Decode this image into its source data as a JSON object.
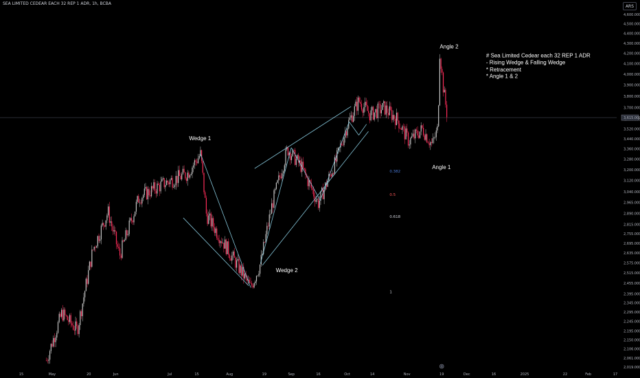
{
  "header": {
    "symbol_title": "SEA LIMITED CEDEAR EACH 32 REP 1 ADR, 1h, BCBA",
    "currency": "ARS"
  },
  "colors": {
    "background": "#000000",
    "candle_up": "#c6c6c6",
    "candle_down": "#ff2d5a",
    "trendline": "#86c7db",
    "price_line": "#363a45",
    "fib_0382": "#4a7ad8",
    "fib_05": "#ff5a5a",
    "fib_0618": "#d1d4dc",
    "fib_1": "#d1d4dc"
  },
  "chart_data": {
    "type": "candlestick",
    "title": "SEA LIMITED CEDEAR EACH 32 REP 1 ADR, 1h, BCBA",
    "xlabel": "",
    "ylabel": "",
    "y_scale": "log",
    "ylim": [
      2015,
      4700
    ],
    "y_ticks": [
      "4,600.000",
      "4,500.000",
      "4,400.000",
      "4,300.000",
      "4,200.000",
      "4,100.000",
      "4,000.000",
      "3,900.000",
      "3,800.000",
      "3,700.000",
      "3,600.000",
      "3,520.000",
      "3,440.000",
      "3,360.000",
      "3,280.000",
      "3,200.000",
      "3,120.000",
      "3,040.000",
      "2,965.000",
      "2,890.000",
      "2,815.000",
      "2,755.000",
      "2,695.000",
      "2,635.000",
      "2,575.000",
      "2,515.000",
      "2,455.000",
      "2,395.000",
      "2,345.000",
      "2,295.000",
      "2,245.000",
      "2,195.000",
      "2,150.000",
      "2,106.000",
      "2,061.000",
      "2,019.000"
    ],
    "y_tick_values": [
      4600,
      4500,
      4400,
      4300,
      4200,
      4100,
      4000,
      3900,
      3800,
      3700,
      3600,
      3520,
      3440,
      3360,
      3280,
      3200,
      3120,
      3040,
      2965,
      2890,
      2815,
      2755,
      2695,
      2635,
      2575,
      2515,
      2455,
      2395,
      2345,
      2295,
      2245,
      2195,
      2150,
      2106,
      2061,
      2019
    ],
    "x_ticks": [
      "15",
      "May",
      "20",
      "Jun",
      "Jul",
      "15",
      "Aug",
      "19",
      "Sep",
      "16",
      "Oct",
      "14",
      "Nov",
      "19",
      "Dec",
      "16",
      "2025",
      "22",
      "Feb",
      "17"
    ],
    "last_price": "3,615.000",
    "last_price_value": 3615,
    "price_path": [
      {
        "x": "Apr 28",
        "y": 2050
      },
      {
        "x": "May 6",
        "y": 2290
      },
      {
        "x": "May 14",
        "y": 2200
      },
      {
        "x": "May 22",
        "y": 2650
      },
      {
        "x": "May 30",
        "y": 2900
      },
      {
        "x": "Jun 5",
        "y": 2620
      },
      {
        "x": "Jun 15",
        "y": 3000
      },
      {
        "x": "Jun 28",
        "y": 3100
      },
      {
        "x": "Jul 10",
        "y": 3170
      },
      {
        "x": "Jul 17",
        "y": 3320
      },
      {
        "x": "Jul 20",
        "y": 2880
      },
      {
        "x": "Aug 3",
        "y": 2600
      },
      {
        "x": "Aug 12",
        "y": 2430
      },
      {
        "x": "Aug 17",
        "y": 2570
      },
      {
        "x": "Aug 23",
        "y": 2950
      },
      {
        "x": "Aug 31",
        "y": 3360
      },
      {
        "x": "Sep 7",
        "y": 3230
      },
      {
        "x": "Sep 16",
        "y": 2960
      },
      {
        "x": "Sep 25",
        "y": 3260
      },
      {
        "x": "Oct 1",
        "y": 3550
      },
      {
        "x": "Oct 7",
        "y": 3760
      },
      {
        "x": "Oct 13",
        "y": 3640
      },
      {
        "x": "Oct 20",
        "y": 3700
      },
      {
        "x": "Oct 27",
        "y": 3600
      },
      {
        "x": "Nov 2",
        "y": 3420
      },
      {
        "x": "Nov 9",
        "y": 3520
      },
      {
        "x": "Nov 14",
        "y": 3390
      },
      {
        "x": "Nov 17",
        "y": 3520
      },
      {
        "x": "Nov 18",
        "y": 4220
      },
      {
        "x": "Nov 20",
        "y": 3850
      },
      {
        "x": "Nov 22",
        "y": 3615
      }
    ],
    "annotations": [
      {
        "text": "Wedge 1"
      },
      {
        "text": "Wedge 2"
      },
      {
        "text": "Angle 1"
      },
      {
        "text": "Angle 2"
      }
    ],
    "fib_levels": [
      "0.382",
      "0.5",
      "0.618",
      "1"
    ],
    "note_lines": [
      "# Sea Limited Cedear each 32 REP 1 ADR",
      "- Rising Wedge & Falling Wedge",
      "* Retracement",
      "* Angle 1 & 2"
    ],
    "grid": false,
    "legend": "none"
  }
}
